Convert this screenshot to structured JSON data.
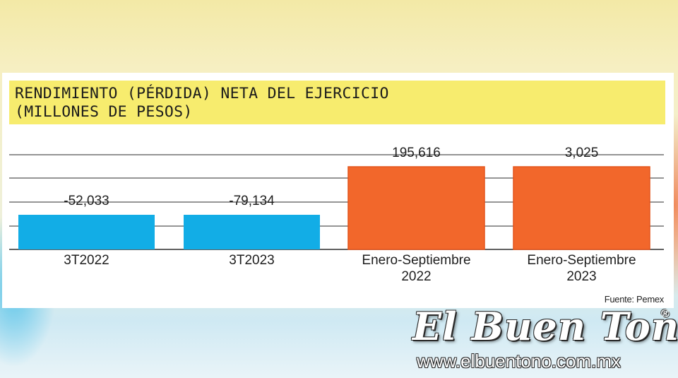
{
  "chart_data": {
    "type": "bar",
    "title": "RENDIMIENTO (PÉRDIDA) NETA DEL EJERCICIO\n(MILLONES DE PESOS)",
    "categories": [
      [
        "3T2022"
      ],
      [
        "3T2023"
      ],
      [
        "Enero-Septiembre",
        "2022"
      ],
      [
        "Enero-Septiembre",
        "2023"
      ]
    ],
    "values": [
      -52033,
      -79134,
      195616,
      3025
    ],
    "value_labels": [
      "-52,033",
      "-79,134",
      "195,616",
      "3,025"
    ],
    "colors": [
      "#12ade6",
      "#12ade6",
      "#f2672b",
      "#f2672b"
    ],
    "grid": true,
    "legend": "none"
  },
  "source": "Fuente: Pemex",
  "watermark": {
    "name": "El Buen Tono",
    "registered": "®",
    "url": "www.elbuentono.com.mx"
  }
}
